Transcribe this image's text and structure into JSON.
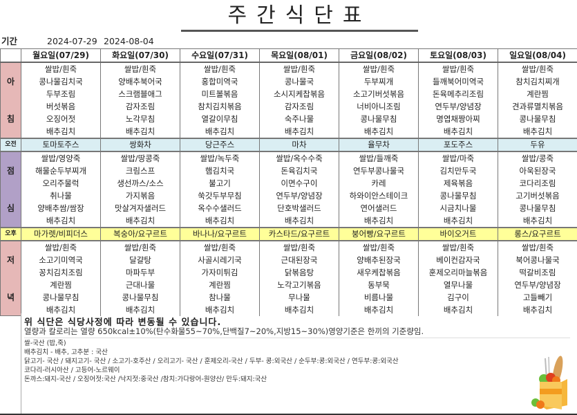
{
  "title": "주간식단표",
  "period": {
    "label": "기간",
    "start": "2024-07-29",
    "end": "2024-08-04"
  },
  "days": [
    "월요일(07/29)",
    "화요일(07/30)",
    "수요일(07/31)",
    "목요일(08/01)",
    "금요일(08/02)",
    "토요일(08/03)",
    "일요일(08/04)"
  ],
  "labels": {
    "breakfast": [
      "아",
      "침"
    ],
    "am_snack": "오전",
    "lunch": [
      "점",
      "심"
    ],
    "pm_snack": "오후",
    "dinner": [
      "저",
      "녁"
    ]
  },
  "breakfast": [
    [
      "쌀밥/흰죽",
      "콩나물김치국",
      "두부조림",
      "버섯볶음",
      "오징어젓",
      "배추김치"
    ],
    [
      "쌀밥/흰죽",
      "양배추북어국",
      "스크램블애그",
      "감자조림",
      "노각무침",
      "배추김치"
    ],
    [
      "쌀밥/흰죽",
      "홍합미역국",
      "미트볼볶음",
      "참치김치볶음",
      "열갈이무침",
      "배추김치"
    ],
    [
      "쌀밥/흰죽",
      "콩나물국",
      "소시지케찹볶음",
      "감자조림",
      "숙주나물",
      "배추김치"
    ],
    [
      "쌀밥/흰죽",
      "두부찌개",
      "소고기버섯볶음",
      "너비아니조림",
      "콩나물무침",
      "배추김치"
    ],
    [
      "쌀밥/흰죽",
      "들깨북어미역국",
      "돈육메추리조림",
      "연두부/양념장",
      "명엽채짱아찌",
      "배추김치"
    ],
    [
      "쌀밥/흰죽",
      "참치김치찌개",
      "계란찜",
      "견과류멸치볶음",
      "콩나물무침",
      "배추김치"
    ]
  ],
  "am_snack": [
    "토마토주스",
    "쌍화차",
    "당근주스",
    "마차",
    "율무차",
    "포도주스",
    "두유"
  ],
  "lunch": [
    [
      "쌀밥/영양죽",
      "해물순두부찌개",
      "오리주물럭",
      "취나물",
      "양배추쌈/쌈장",
      "배추김치"
    ],
    [
      "쌀밥/땅콩죽",
      "크림스프",
      "생선까스/소스",
      "가지볶음",
      "맛살겨자샐러드",
      "배추김치"
    ],
    [
      "쌀밥/녹두죽",
      "햄김치국",
      "불고기",
      "쑥갓두부무침",
      "옥수수샐러드",
      "배추김치"
    ],
    [
      "쌀밥/옥수수죽",
      "돈육김치국",
      "이면수구이",
      "연두부/양념장",
      "단호박샐러드",
      "배추김치"
    ],
    [
      "쌀밥/들깨죽",
      "연두부콩나물국",
      "카레",
      "하와이안스테이크",
      "연어샐러드",
      "배추김치"
    ],
    [
      "쌀밥/마죽",
      "김치만두국",
      "제육볶음",
      "콩나물무침",
      "시금치나물",
      "배추김치"
    ],
    [
      "쌀밥/콩죽",
      "아욱된장국",
      "코다리조림",
      "고기버섯볶음",
      "콩나물무침",
      "배추김치"
    ]
  ],
  "pm_snack": [
    "마가렛/비피더스",
    "복숭아/요구르트",
    "바나나/요구르트",
    "카스타드/요구르트",
    "붕어빵/요구르트",
    "바이오거트",
    "롱스/요구르트"
  ],
  "dinner": [
    [
      "쌀밥/흰죽",
      "소고기미역국",
      "꽁치김치조림",
      "계란찜",
      "콩나물무침",
      "배추김치"
    ],
    [
      "쌀밥/흰죽",
      "달걀탕",
      "마파두부",
      "근대나물",
      "콩나물무침",
      "배추김치"
    ],
    [
      "쌀밥/흰죽",
      "사골시레기국",
      "가자미튀김",
      "계란찜",
      "참나물",
      "배추김치"
    ],
    [
      "쌀밥/흰죽",
      "근대된장국",
      "닭볶음탕",
      "노각고기볶음",
      "무나물",
      "배추김치"
    ],
    [
      "쌀밥/흰죽",
      "양배추된장국",
      "새우케찹볶음",
      "동부묵",
      "비름나물",
      "배추김치"
    ],
    [
      "쌀밥/흰죽",
      "베이컨감자국",
      "훈제오리마늘볶음",
      "열무나물",
      "김구이",
      "배추김치"
    ],
    [
      "쌀밥/흰죽",
      "북어콩나물국",
      "떡갈비조림",
      "연두부/양념장",
      "고들빼기",
      "배추김치"
    ]
  ],
  "notice": "위 식단은 식당사정에 따라 변동될 수 있습니다.",
  "nutrition": "열량과 칼로리는 열량 650kcal±10%(탄수화물55~70%,단백질7~20%,지방15~30%)영양기준은 한끼의 기준량임.",
  "origin": [
    "쌀-국산 (밥,죽)",
    "배추김치 - 배추, 고추분 : 국산",
    "닭고기- 국산 / 돼지고기- 국산 / 소고기-호주산 / 오리고기- 국산 / 훈제오리-국산 / 두부- 콩:외국산 / 순두부:콩:외국산 / 연두부:콩:외국산",
    "코다리-러시아산 / 고등어-노르웨이",
    "돈까스:돼지-국산 / 오징어젓:국산 /낙지젓:중국산 /참치:가다랑어-원양산/ 만두:돼지:국산"
  ],
  "colors": {
    "breakfast_label": "#e6b8b7",
    "lunch_label": "#b1a0c7",
    "am_snack": "#daeef3",
    "pm_snack": "#ffff99"
  },
  "icons": {
    "basket": "grocery-basket-icon"
  }
}
